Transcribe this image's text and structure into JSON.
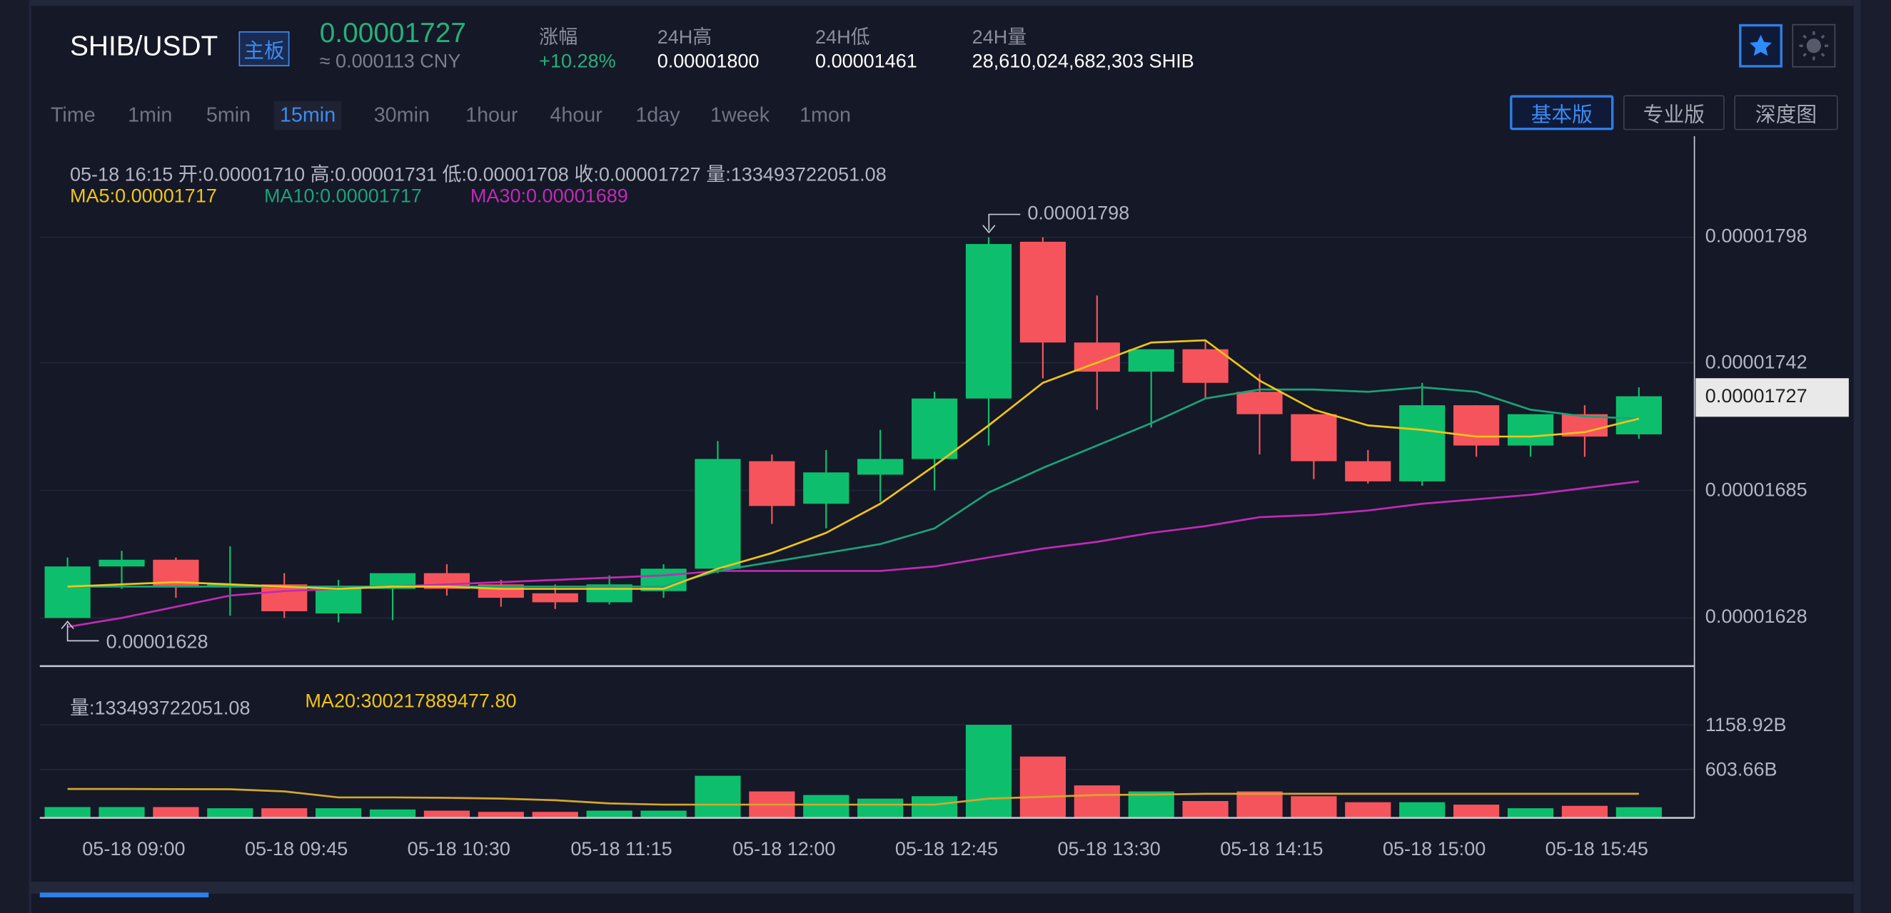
{
  "header": {
    "pair": "SHIB/USDT",
    "board_badge": "主板",
    "last_price": "0.00001727",
    "cny_price": "≈ 0.000113 CNY",
    "stats": [
      {
        "label": "涨幅",
        "value": "+10.28%"
      },
      {
        "label": "24H高",
        "value": "0.00001800"
      },
      {
        "label": "24H低",
        "value": "0.00001461"
      },
      {
        "label": "24H量",
        "value": "28,610,024,682,303 SHIB"
      }
    ],
    "favorite_icon": "star-icon",
    "theme_icon": "sun-icon"
  },
  "periods": [
    "Time",
    "1min",
    "5min",
    "15min",
    "30min",
    "1hour",
    "4hour",
    "1day",
    "1week",
    "1mon"
  ],
  "selected_period": "15min",
  "views": [
    "基本版",
    "专业版",
    "深度图"
  ],
  "selected_view": "基本版",
  "info": {
    "line": "05-18 16:15   开:0.00001710  高:0.00001731  低:0.00001708  收:0.00001727  量:133493722051.08",
    "ma5": "MA5:0.00001717",
    "ma10": "MA10:0.00001717",
    "ma30": "MA30:0.00001689",
    "vol": "量:133493722051.08",
    "vol_ma20": "MA20:300217889477.80"
  },
  "colors": {
    "up": "#0dbf6d",
    "down": "#f6545c",
    "ma5": "#f0c419",
    "ma10": "#1aa37a",
    "ma30": "#c02ab8",
    "accent": "#2f7fe8"
  },
  "chart_data": {
    "type": "candlestick",
    "unit": "1e-8 USDT",
    "price_ticks": [
      "0.00001798",
      "0.00001742",
      "0.00001685",
      "0.00001628"
    ],
    "price_tick_values": [
      1798,
      1742,
      1685,
      1628
    ],
    "current_price_label": "0.00001727",
    "max_label": "0.00001798",
    "min_label": "0.00001628",
    "volume_ticks": [
      "1158.92B",
      "603.66B"
    ],
    "volume_tick_values": [
      1158.92,
      603.66
    ],
    "time_labels": [
      "05-18 09:00",
      "05-18 09:45",
      "05-18 10:30",
      "05-18 11:15",
      "05-18 12:00",
      "05-18 12:45",
      "05-18 13:30",
      "05-18 14:15",
      "05-18 15:00",
      "05-18 15:45"
    ],
    "time_label_index": [
      1,
      4,
      7,
      10,
      13,
      16,
      19,
      22,
      25,
      28
    ],
    "ohlc": [
      [
        1628,
        1655,
        1628,
        1651
      ],
      [
        1651,
        1658,
        1641,
        1654
      ],
      [
        1654,
        1655,
        1637,
        1642
      ],
      [
        1642,
        1660,
        1629,
        1643
      ],
      [
        1643,
        1648,
        1628,
        1631
      ],
      [
        1630,
        1645,
        1626,
        1641
      ],
      [
        1641,
        1648,
        1627,
        1648
      ],
      [
        1648,
        1652,
        1638,
        1641
      ],
      [
        1643,
        1645,
        1633,
        1637
      ],
      [
        1639,
        1643,
        1632,
        1635
      ],
      [
        1635,
        1647,
        1634,
        1643
      ],
      [
        1640,
        1652,
        1637,
        1650
      ],
      [
        1650,
        1707,
        1648,
        1699
      ],
      [
        1698,
        1701,
        1670,
        1678
      ],
      [
        1679,
        1703,
        1668,
        1693
      ],
      [
        1692,
        1712,
        1680,
        1699
      ],
      [
        1699,
        1729,
        1685,
        1726
      ],
      [
        1726,
        1798,
        1705,
        1795
      ],
      [
        1796,
        1798,
        1735,
        1751
      ],
      [
        1751,
        1772,
        1721,
        1738
      ],
      [
        1738,
        1748,
        1713,
        1748
      ],
      [
        1748,
        1752,
        1726,
        1733
      ],
      [
        1729,
        1737,
        1701,
        1719
      ],
      [
        1719,
        1719,
        1690,
        1698
      ],
      [
        1698,
        1703,
        1688,
        1689
      ],
      [
        1689,
        1733,
        1687,
        1723
      ],
      [
        1723,
        1723,
        1700,
        1705
      ],
      [
        1705,
        1719,
        1700,
        1719
      ],
      [
        1719,
        1723,
        1700,
        1709
      ],
      [
        1710,
        1731,
        1708,
        1727
      ]
    ],
    "ma5": [
      1642,
      1643,
      1644,
      1643,
      1642,
      1641,
      1642,
      1642,
      1641,
      1641,
      1641,
      1641,
      1650,
      1657,
      1666,
      1679,
      1696,
      1714,
      1733,
      1742,
      1751,
      1752,
      1734,
      1721,
      1714,
      1712,
      1709,
      1709,
      1711,
      1717
    ],
    "ma10": [
      1642,
      1642,
      1642,
      1642,
      1642,
      1642,
      1642,
      1642,
      1642,
      1642,
      1642,
      1642,
      1649,
      1653,
      1657,
      1661,
      1668,
      1684,
      1695,
      1705,
      1715,
      1726,
      1730,
      1730,
      1729,
      1731,
      1729,
      1721,
      1718,
      1717
    ],
    "ma30": [
      1624,
      1628,
      1633,
      1638,
      1640,
      1641,
      1642,
      1643,
      1644,
      1645,
      1646,
      1647,
      1649,
      1649,
      1649,
      1649,
      1651,
      1655,
      1659,
      1662,
      1666,
      1669,
      1673,
      1674,
      1676,
      1679,
      1681,
      1683,
      1686,
      1689
    ],
    "volume_B": [
      135,
      135,
      135,
      120,
      120,
      120,
      105,
      90,
      75,
      75,
      90,
      90,
      525,
      330,
      285,
      240,
      270,
      1160,
      765,
      405,
      330,
      210,
      330,
      270,
      195,
      195,
      165,
      120,
      150,
      133
    ],
    "volume_up": [
      1,
      1,
      0,
      1,
      0,
      1,
      1,
      0,
      0,
      0,
      1,
      1,
      1,
      0,
      1,
      1,
      1,
      1,
      0,
      0,
      1,
      0,
      0,
      0,
      0,
      1,
      0,
      1,
      0,
      1
    ],
    "volume_ma20": [
      360,
      360,
      358,
      357,
      330,
      255,
      255,
      250,
      240,
      220,
      180,
      165,
      165,
      165,
      165,
      165,
      165,
      240,
      262,
      285,
      290,
      300,
      300,
      300,
      300,
      300,
      300,
      300,
      300,
      300
    ]
  }
}
